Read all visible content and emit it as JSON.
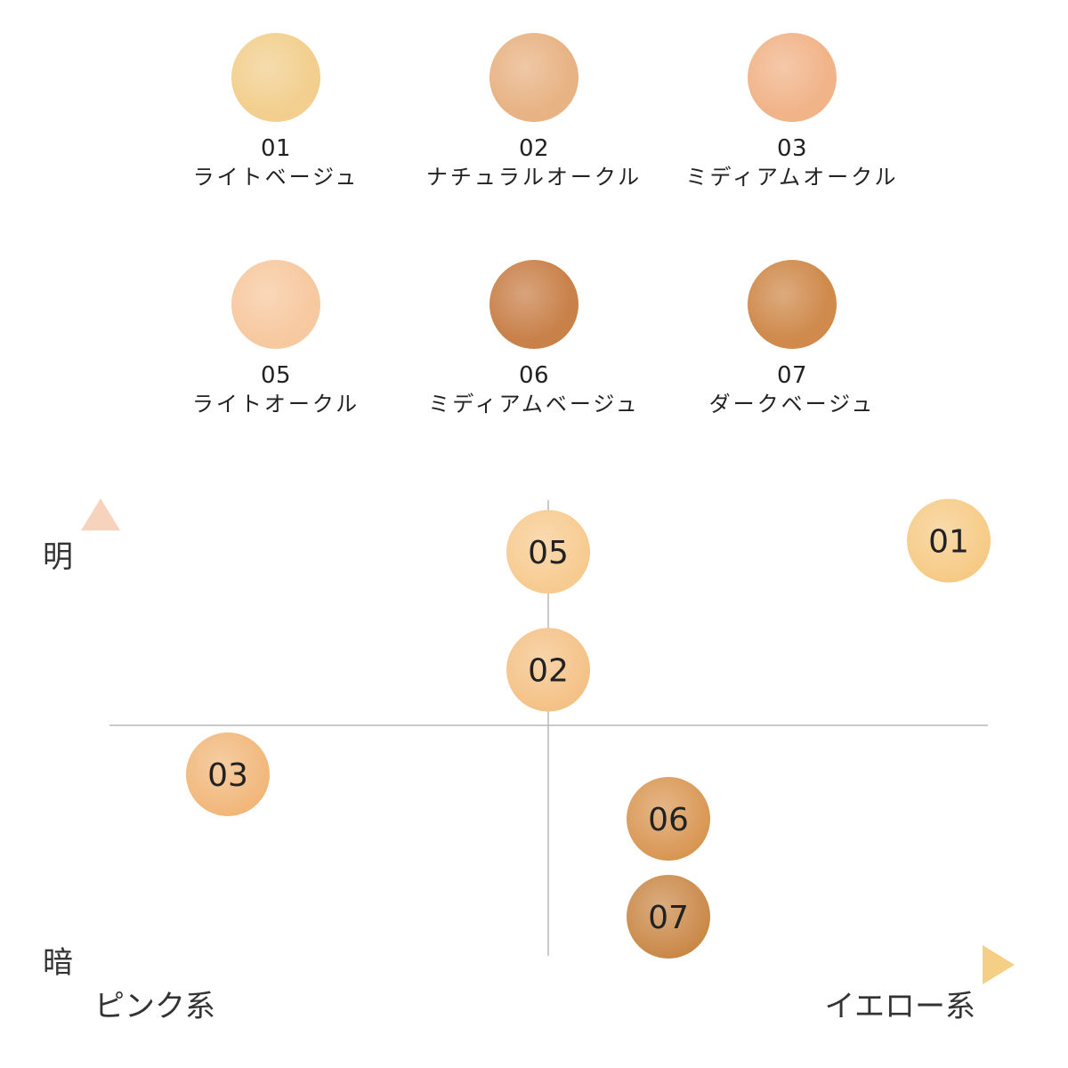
{
  "swatches": [
    {
      "code": "01",
      "name": "ライトベージュ",
      "color": "#f2cf8e"
    },
    {
      "code": "02",
      "name": "ナチュラルオークル",
      "color": "#e8b384"
    },
    {
      "code": "03",
      "name": "ミディアムオークル",
      "color": "#f1b489"
    },
    {
      "code": "05",
      "name": "ライトオークル",
      "color": "#f7c9a0"
    },
    {
      "code": "06",
      "name": "ミディアムベージュ",
      "color": "#c9814a"
    },
    {
      "code": "07",
      "name": "ダークベージュ",
      "color": "#cf8a4c"
    }
  ],
  "chart_data": {
    "type": "scatter",
    "ylabel_top": "明",
    "ylabel_bottom": "暗",
    "xlabel_left": "ピンク系",
    "xlabel_right": "イエロー系",
    "xlim": [
      -1,
      1
    ],
    "ylim": [
      -1,
      1
    ],
    "points": [
      {
        "label": "01",
        "x": 0.9,
        "y": 0.83,
        "color": "#f6c982"
      },
      {
        "label": "05",
        "x": 0.0,
        "y": 0.78,
        "color": "#f7c98c"
      },
      {
        "label": "02",
        "x": 0.0,
        "y": 0.25,
        "color": "#f4c083"
      },
      {
        "label": "03",
        "x": -0.72,
        "y": -0.22,
        "color": "#f1b577"
      },
      {
        "label": "06",
        "x": 0.27,
        "y": -0.42,
        "color": "#d8944f"
      },
      {
        "label": "07",
        "x": 0.27,
        "y": -0.86,
        "color": "#c98644"
      }
    ]
  }
}
